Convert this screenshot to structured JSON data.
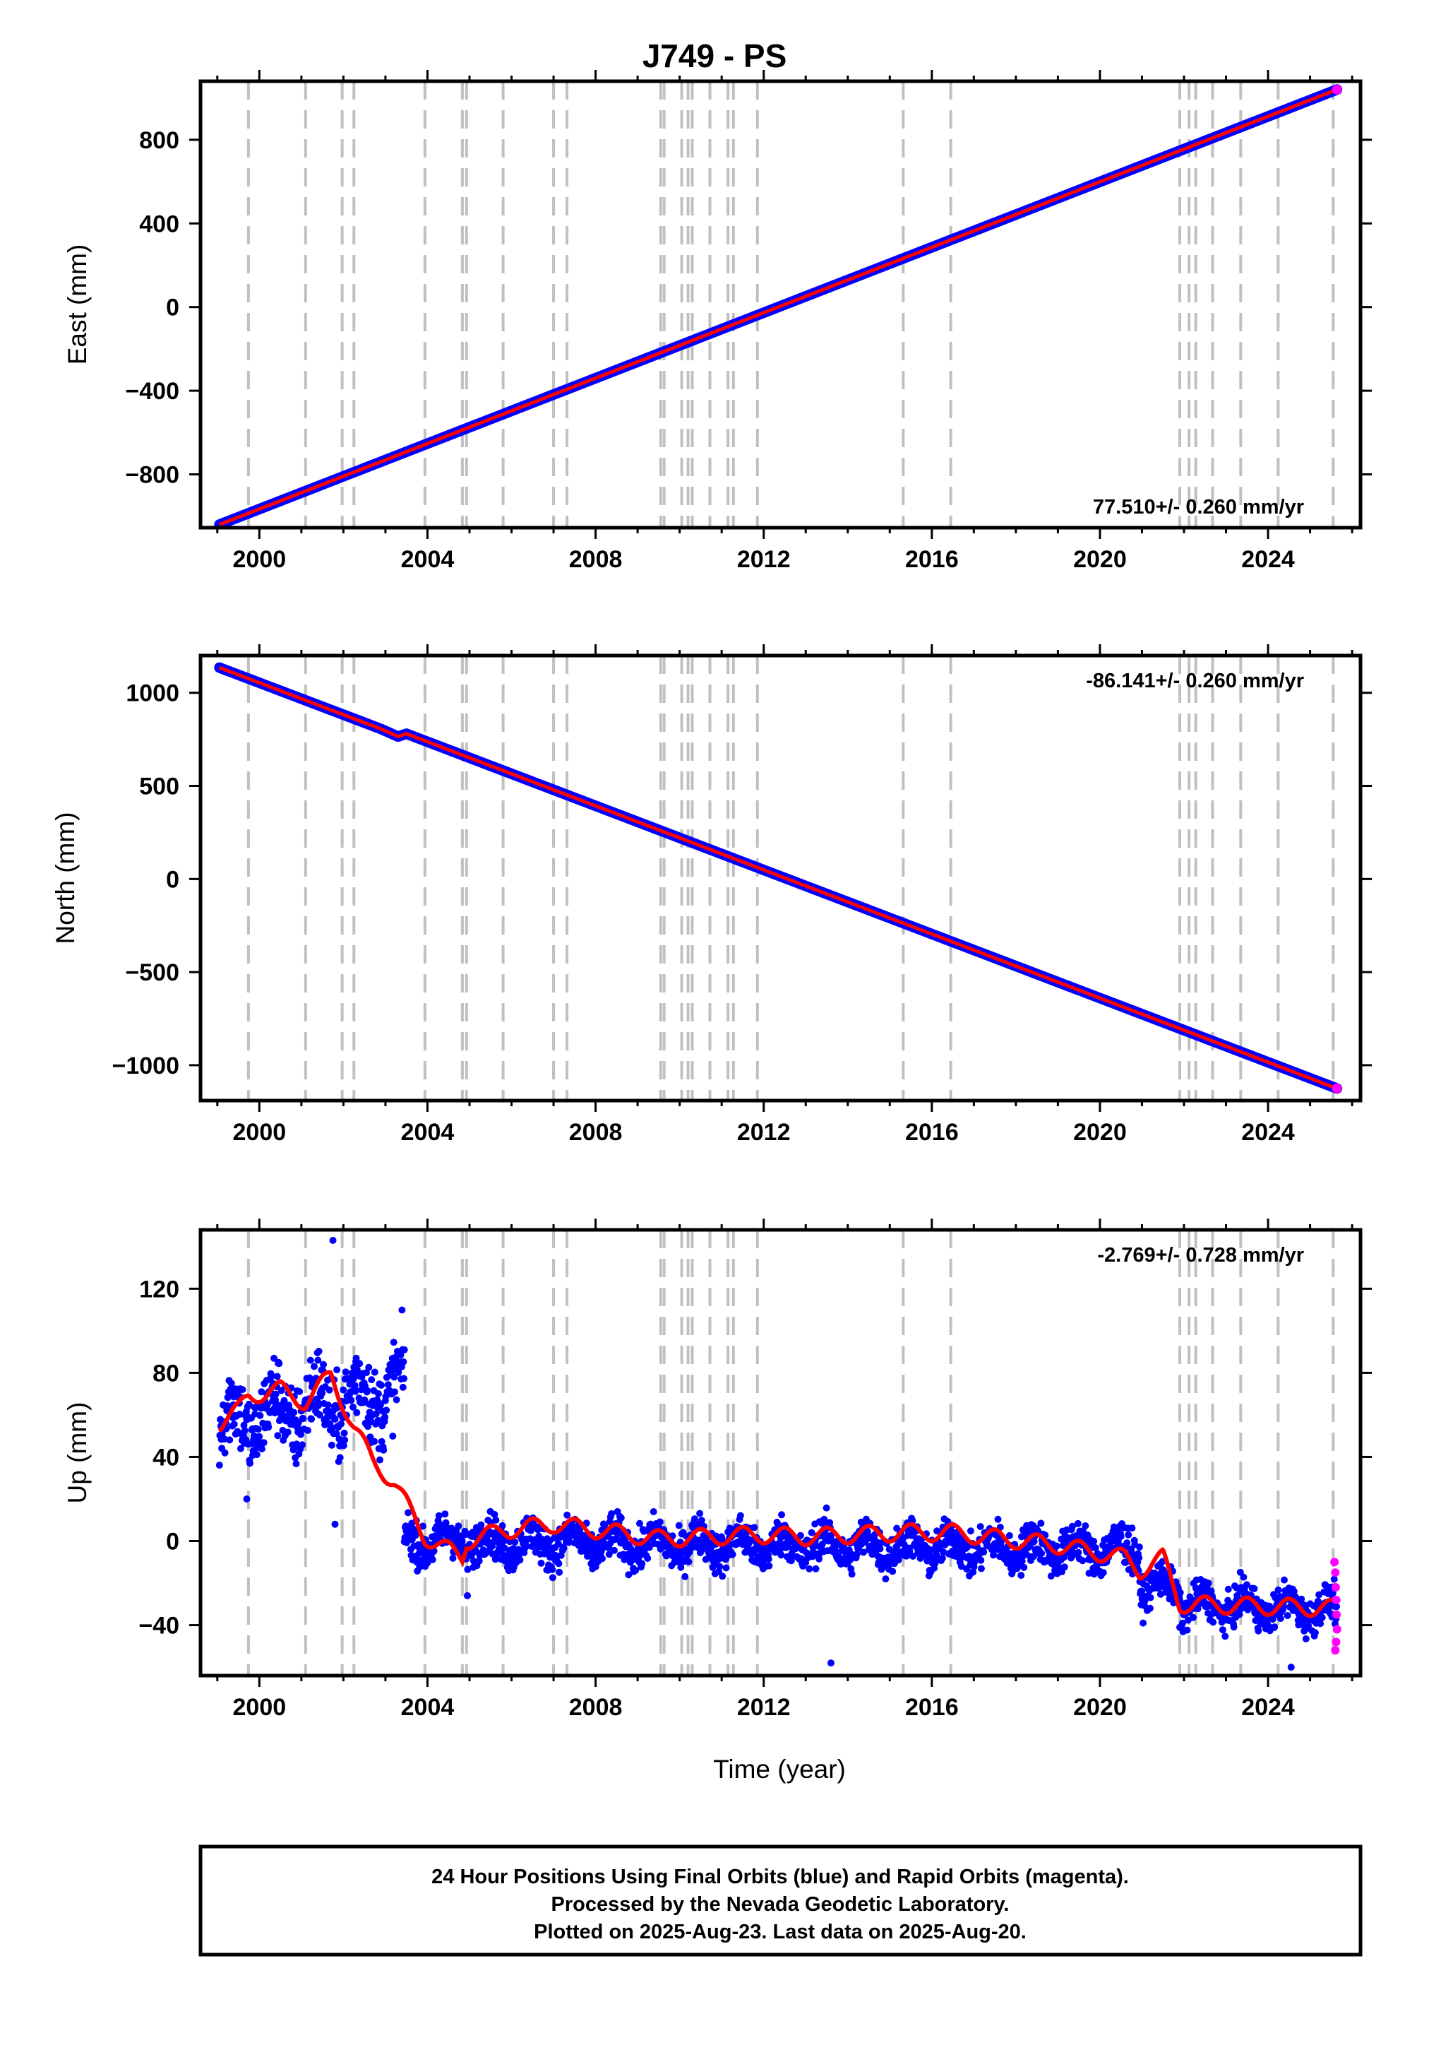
{
  "chart_data": {
    "type": "scatter",
    "title": "J749 - PS",
    "xlabel": "Time (year)",
    "xlim": [
      1998.6,
      2026.2
    ],
    "x_ticks": [
      "2000",
      "2004",
      "2008",
      "2012",
      "2016",
      "2020",
      "2024"
    ],
    "x_tick_values": [
      2000,
      2004,
      2008,
      2012,
      2016,
      2020,
      2024
    ],
    "data_start": 1999.05,
    "data_end": 2025.64,
    "rapid_start": 2025.55,
    "colors": {
      "final": "#0000ff",
      "rapid": "#ff00ff",
      "model": "#ff0000",
      "steps": "#c0c0c0"
    },
    "step_lines": [
      1999.74,
      2001.1,
      2001.97,
      2002.25,
      2003.94,
      2004.83,
      2004.93,
      2005.8,
      2007.0,
      2007.32,
      2009.55,
      2009.63,
      2010.05,
      2010.2,
      2010.3,
      2010.72,
      2011.15,
      2011.28,
      2011.85,
      2015.32,
      2016.45,
      2021.9,
      2022.12,
      2022.28,
      2022.68,
      2023.35,
      2024.24,
      2025.55
    ],
    "panels": [
      {
        "name": "east",
        "ylabel": "East (mm)",
        "ylim": [
          -1055,
          1080
        ],
        "y_ticks": [
          "-800",
          "-400",
          "0",
          "400",
          "800"
        ],
        "y_tick_values": [
          -800,
          -400,
          0,
          400,
          800
        ],
        "rate_label": "77.510+/- 0.260 mm/yr",
        "rate_pos": "bottom-right",
        "series": [
          {
            "name": "Final Orbits",
            "x": [
              1999.05,
              2025.64
            ],
            "y": [
              -1040,
              1040
            ]
          }
        ]
      },
      {
        "name": "north",
        "ylabel": "North (mm)",
        "ylim": [
          -1190,
          1200
        ],
        "y_ticks": [
          "-1000",
          "-500",
          "0",
          "500",
          "1000"
        ],
        "y_tick_values": [
          -1000,
          -500,
          0,
          500,
          1000
        ],
        "rate_label": "-86.141+/- 0.260 mm/yr",
        "rate_pos": "top-right",
        "series": [
          {
            "name": "Final Orbits",
            "x": [
              1999.05,
              2002.9,
              2003.3,
              2003.5,
              2025.64
            ],
            "y": [
              1135,
              805,
              765,
              780,
              -1125
            ]
          }
        ]
      },
      {
        "name": "up",
        "ylabel": "Up (mm)",
        "ylim": [
          -64,
          148
        ],
        "y_ticks": [
          "-40",
          "0",
          "40",
          "80",
          "120"
        ],
        "y_tick_values": [
          -40,
          0,
          40,
          80,
          120
        ],
        "rate_label": "-2.769+/- 0.728 mm/yr",
        "rate_pos": "top-right",
        "model": {
          "x": [
            1999.05,
            1999.5,
            1999.74,
            2000.5,
            2001.1,
            2001.7,
            2002.25,
            2002.7,
            2003.2,
            2003.94,
            2004.83,
            2004.93,
            2005.8,
            2007.0,
            2009.55,
            2011.85,
            2013.0,
            2015.32,
            2016.45,
            2019.0,
            2020.6,
            2020.95,
            2021.5,
            2021.9,
            2025.64
          ],
          "y": [
            56,
            62,
            69,
            72,
            66,
            79,
            54,
            38,
            28,
            2,
            -8,
            0,
            5,
            8,
            1,
            3,
            2,
            4,
            4,
            -2,
            -8,
            -14,
            -8,
            -30,
            -32
          ]
        },
        "segments": [
          {
            "x0": 1999.05,
            "x1": 2003.45,
            "a": 56,
            "b": 72,
            "noise": 14
          },
          {
            "x0": 2003.45,
            "x1": 2020.95,
            "a": 0,
            "b": -4,
            "noise": 7
          },
          {
            "x0": 2020.95,
            "x1": 2021.9,
            "a": -22,
            "b": -22,
            "noise": 6
          },
          {
            "x0": 2021.9,
            "x1": 2025.64,
            "a": -30,
            "b": -33,
            "noise": 6
          }
        ],
        "outliers": [
          {
            "x": 2001.75,
            "y": 143
          },
          {
            "x": 2013.6,
            "y": -58
          },
          {
            "x": 2024.55,
            "y": -60
          },
          {
            "x": 2001.8,
            "y": 8
          },
          {
            "x": 1999.7,
            "y": 20
          },
          {
            "x": 2004.95,
            "y": -26
          }
        ],
        "rapid_points": {
          "x": [
            2025.58,
            2025.6,
            2025.61,
            2025.62,
            2025.63,
            2025.64,
            2025.62,
            2025.6
          ],
          "y": [
            -10,
            -15,
            -22,
            -28,
            -35,
            -42,
            -48,
            -52
          ]
        }
      }
    ]
  },
  "footer": {
    "line1": "24 Hour Positions Using Final Orbits (blue) and Rapid Orbits (magenta).",
    "line2": "Processed by the Nevada Geodetic Laboratory.",
    "line3": "Plotted on 2025-Aug-23. Last data on 2025-Aug-20."
  }
}
